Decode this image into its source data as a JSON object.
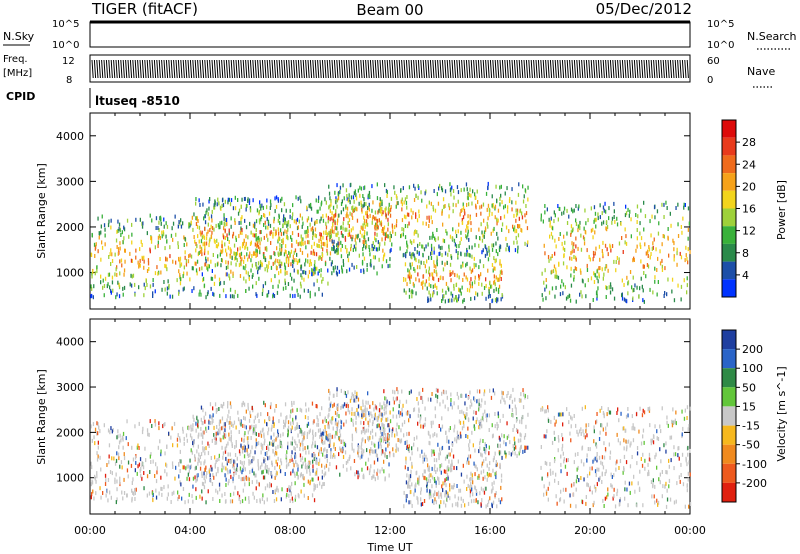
{
  "header": {
    "radar": "TIGER (fitACF)",
    "beam": "Beam 00",
    "date": "05/Dec/2012"
  },
  "nsky_panel": {
    "left_label": "N.Sky",
    "right_label": "N.Search",
    "tick_top": "10^5",
    "tick_bottom": "10^0",
    "right_tick_top": "10^5",
    "right_tick_bottom": "10^0"
  },
  "freq_panel": {
    "label_line1": "Freq.",
    "label_line2": "[MHz]",
    "ticks": [
      "12",
      "8"
    ],
    "right_label": "Nave",
    "right_ticks": [
      "60",
      "0"
    ]
  },
  "cpid_panel": {
    "label": "CPID",
    "value": "ltuseq -8510"
  },
  "x_axis": {
    "title": "Time UT",
    "ticks": [
      "00:00",
      "04:00",
      "08:00",
      "12:00",
      "16:00",
      "20:00",
      "00:00"
    ]
  },
  "chart_data": [
    {
      "type": "heatmap",
      "ylabel": "Slant Range [km]",
      "xlabel": "Time UT",
      "y_ticks": [
        1000,
        2000,
        3000,
        4000
      ],
      "ylim": [
        200,
        4500
      ],
      "xlim_hours": [
        0,
        24
      ],
      "x_ticks": [
        "00:00",
        "04:00",
        "08:00",
        "12:00",
        "16:00",
        "20:00",
        "00:00"
      ],
      "colorbar": {
        "label": "Power [dB]",
        "ticks": [
          "4",
          "8",
          "12",
          "16",
          "20",
          "24",
          "28"
        ],
        "colors": [
          "#0033ff",
          "#1d4fa8",
          "#2a8a4a",
          "#39b13a",
          "#9ed13a",
          "#f2d41d",
          "#f6a21a",
          "#ef6b1c",
          "#e83a1c",
          "#dd0a0a"
        ]
      },
      "scatter_regions": [
        {
          "t_start": 0.0,
          "t_end": 9.5,
          "r_low": 500,
          "r_high": 2300
        },
        {
          "t_start": 4.0,
          "t_end": 12.0,
          "r_low": 1000,
          "r_high": 2700
        },
        {
          "t_start": 9.5,
          "t_end": 17.5,
          "r_low": 1500,
          "r_high": 3000
        },
        {
          "t_start": 12.5,
          "t_end": 16.5,
          "r_low": 400,
          "r_high": 1500
        },
        {
          "t_start": 18.0,
          "t_end": 24.0,
          "r_low": 400,
          "r_high": 2600
        }
      ]
    },
    {
      "type": "heatmap",
      "ylabel": "Slant Range [km]",
      "xlabel": "Time UT",
      "y_ticks": [
        1000,
        2000,
        3000,
        4000
      ],
      "ylim": [
        200,
        4500
      ],
      "xlim_hours": [
        0,
        24
      ],
      "x_ticks": [
        "00:00",
        "04:00",
        "08:00",
        "12:00",
        "16:00",
        "20:00",
        "00:00"
      ],
      "colorbar": {
        "label": "Velocity [m s^-1]",
        "ticks": [
          "200",
          "100",
          "50",
          "15",
          "-15",
          "-50",
          "-100",
          "-200"
        ],
        "colors": [
          "#1f3fa0",
          "#2a64c8",
          "#2f8a46",
          "#62c63a",
          "#c8c8c8",
          "#f6b81e",
          "#f08a1e",
          "#ee5a1e",
          "#e0200f"
        ]
      },
      "scatter_regions": [
        {
          "t_start": 0.0,
          "t_end": 9.5,
          "r_low": 500,
          "r_high": 2300
        },
        {
          "t_start": 4.0,
          "t_end": 12.0,
          "r_low": 1000,
          "r_high": 2700
        },
        {
          "t_start": 9.5,
          "t_end": 17.5,
          "r_low": 1500,
          "r_high": 3000
        },
        {
          "t_start": 12.5,
          "t_end": 16.5,
          "r_low": 400,
          "r_high": 1500
        },
        {
          "t_start": 18.0,
          "t_end": 24.0,
          "r_low": 400,
          "r_high": 2600
        }
      ]
    }
  ]
}
